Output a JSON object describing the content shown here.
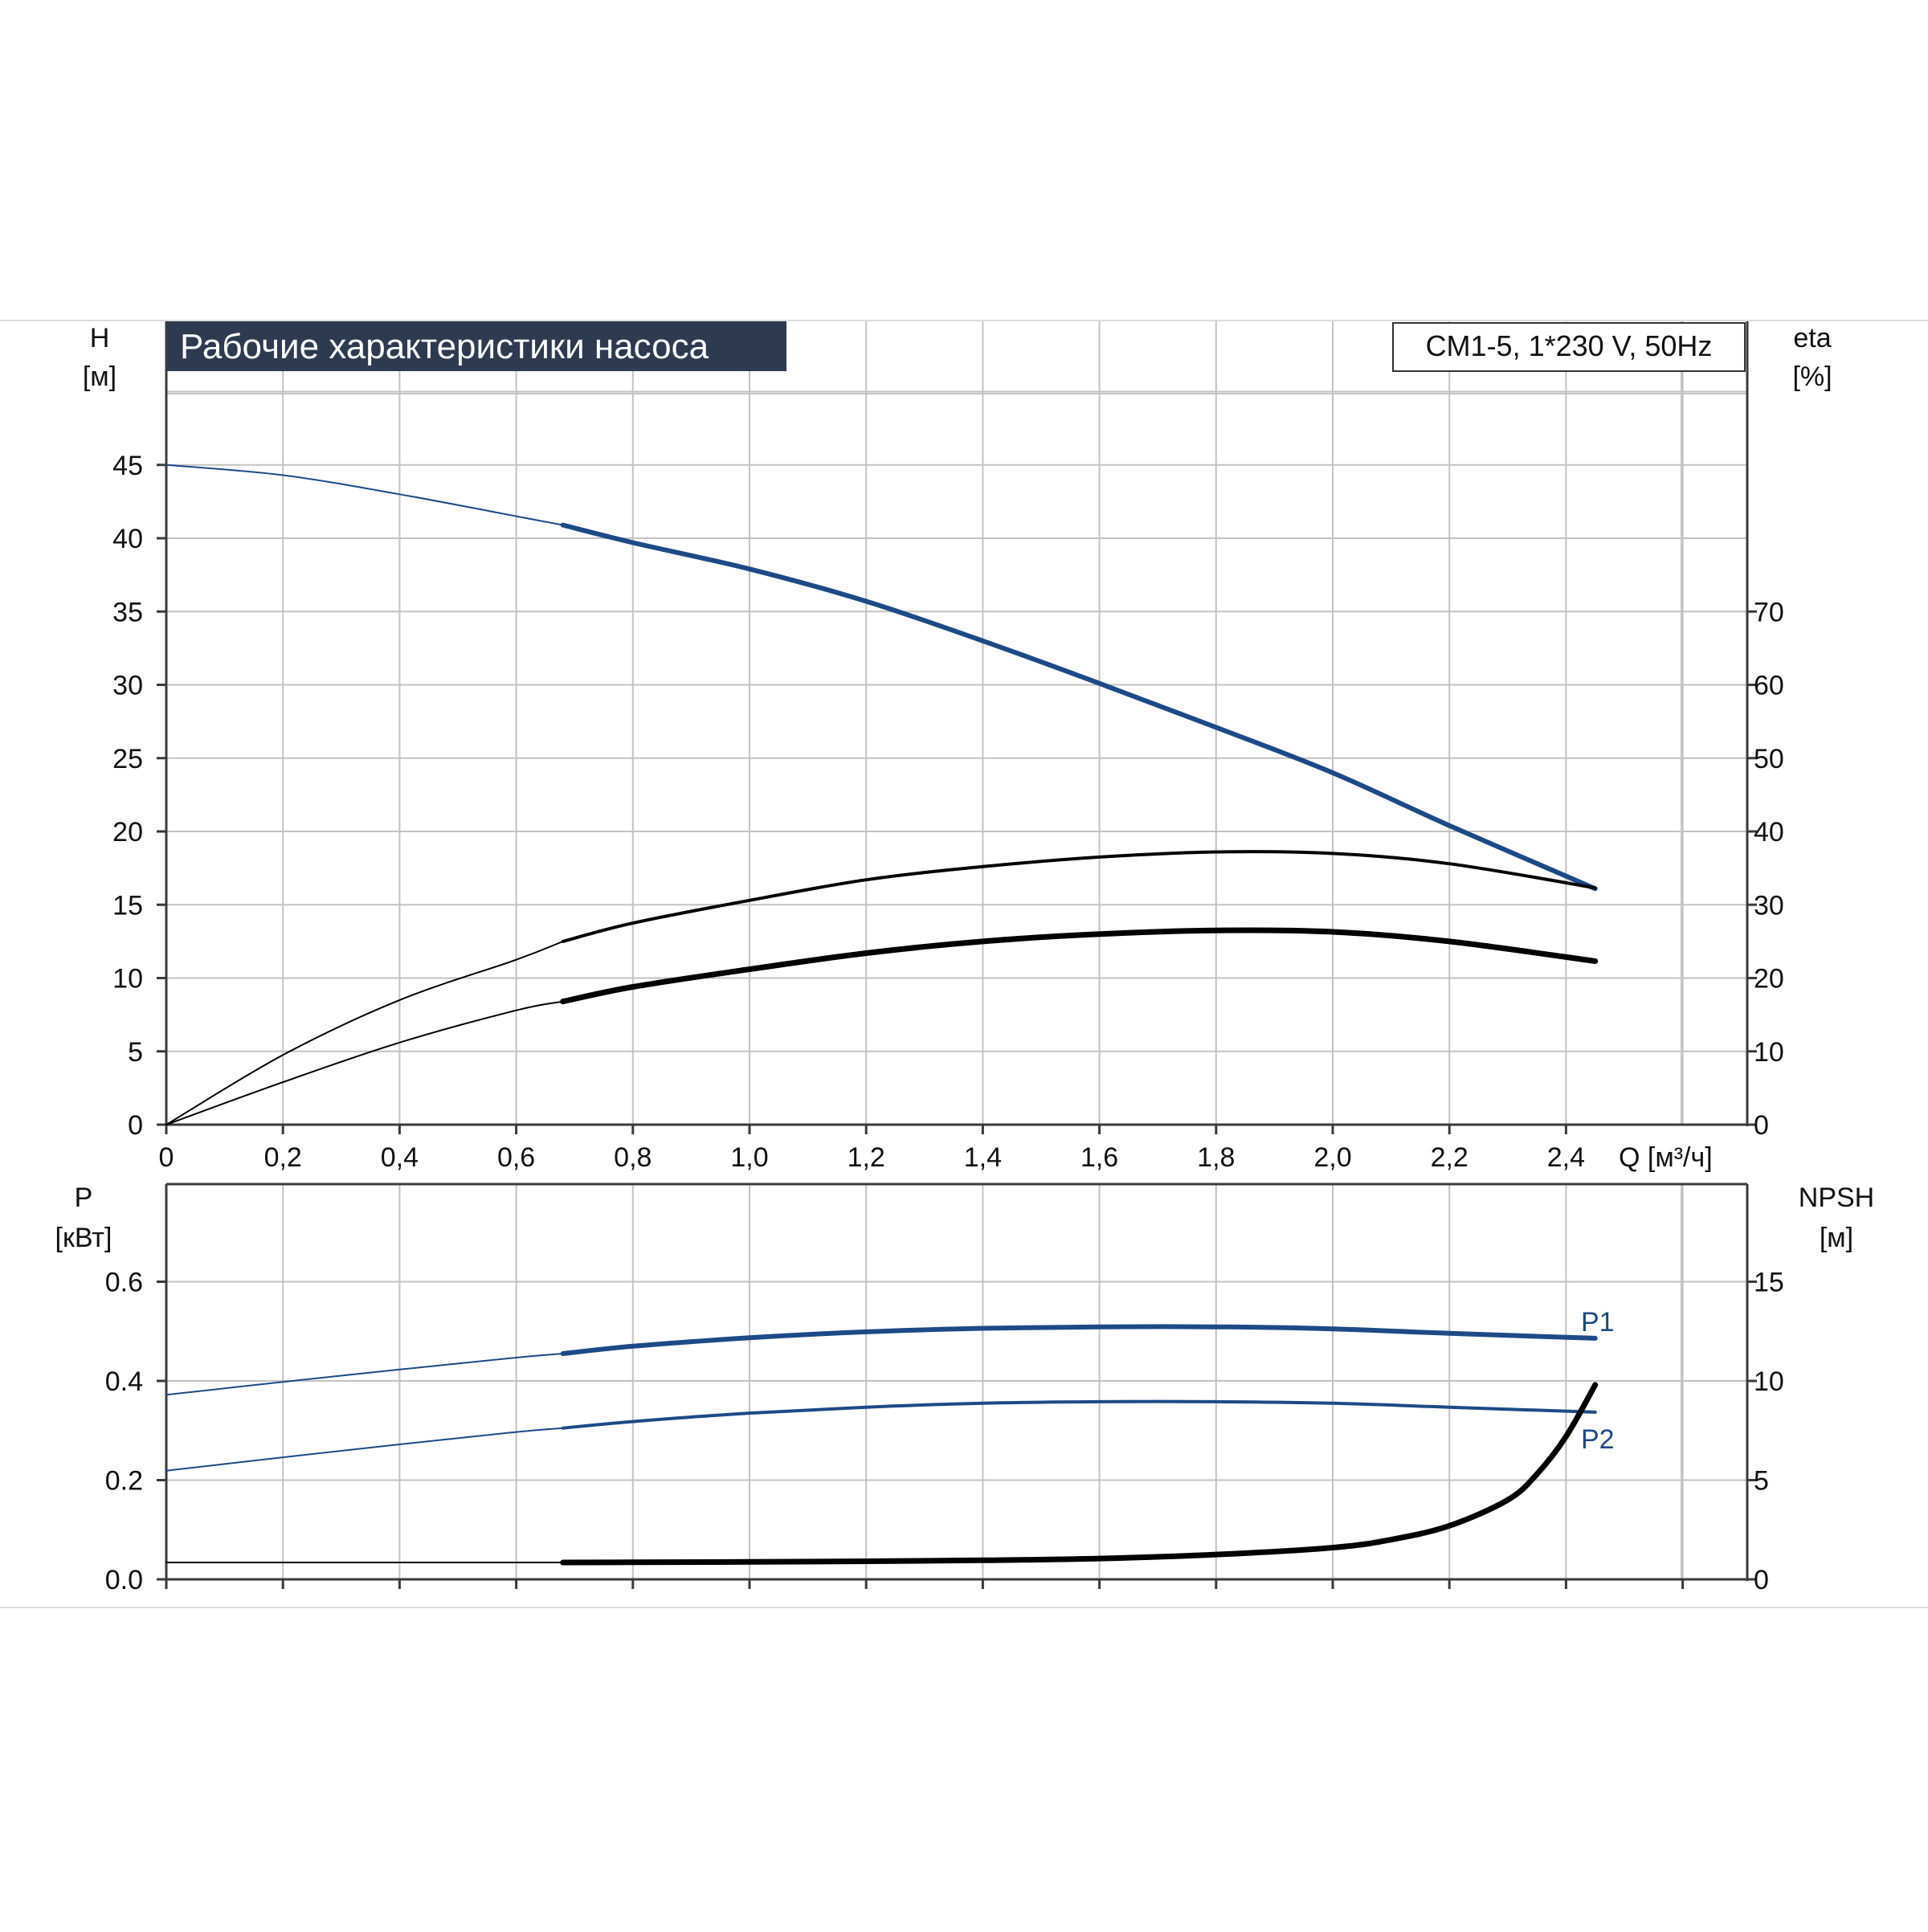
{
  "title": "Рабочие характеристики насоса",
  "model_label": "CM1-5, 1*230 V, 50Hz",
  "colors": {
    "grid": "#c2c2c2",
    "axis": "#3a3a3a",
    "blue": "#1d4a86",
    "black": "#000000",
    "title_bg": "#2e3a4f",
    "title_fg": "#ffffff"
  },
  "chart_data": [
    {
      "id": "performance",
      "type": "line",
      "xlabel": "Q [м³/ч]",
      "xlim": [
        0,
        2.7
      ],
      "x_ticks": [
        "0",
        "0,2",
        "0,4",
        "0,6",
        "0,8",
        "1,0",
        "1,2",
        "1,4",
        "1,6",
        "1,8",
        "2,0",
        "2,2",
        "2,4"
      ],
      "ylabel_left": "H",
      "ylabel_left_unit": "[м]",
      "ylim_left": [
        0,
        50
      ],
      "y_ticks_left": [
        "0",
        "5",
        "10",
        "15",
        "20",
        "25",
        "30",
        "35",
        "40",
        "45"
      ],
      "ylabel_right": "eta",
      "ylabel_right_unit": "[%]",
      "ylim_right": [
        0,
        100
      ],
      "y_ticks_right": [
        "0",
        "10",
        "20",
        "30",
        "40",
        "50",
        "60",
        "70"
      ],
      "grid": true,
      "series": [
        {
          "key": "head",
          "axis": "left",
          "color": "blue",
          "x": [
            0,
            0.2,
            0.4,
            0.6,
            0.68,
            0.8,
            1.0,
            1.2,
            1.4,
            1.6,
            1.8,
            2.0,
            2.2,
            2.45
          ],
          "y": [
            45.0,
            44.3,
            43.0,
            41.5,
            40.9,
            39.7,
            37.9,
            35.7,
            33.0,
            30.1,
            27.1,
            24.0,
            20.4,
            16.1
          ]
        },
        {
          "key": "eta_overall",
          "axis": "right",
          "color": "black",
          "x": [
            0,
            0.2,
            0.4,
            0.6,
            0.68,
            0.8,
            1.0,
            1.2,
            1.4,
            1.6,
            1.8,
            2.0,
            2.2,
            2.45
          ],
          "y": [
            0,
            9.5,
            17.0,
            22.5,
            25.0,
            27.5,
            30.6,
            33.4,
            35.2,
            36.5,
            37.2,
            37.0,
            35.6,
            32.3
          ]
        },
        {
          "key": "eta_hydraulic",
          "axis": "right",
          "color": "black",
          "x": [
            0,
            0.2,
            0.4,
            0.6,
            0.68,
            0.8,
            1.0,
            1.2,
            1.4,
            1.6,
            1.8,
            2.0,
            2.2,
            2.45
          ],
          "y": [
            0,
            5.8,
            11.2,
            15.6,
            16.8,
            18.8,
            21.2,
            23.4,
            25.0,
            26.0,
            26.5,
            26.3,
            25.0,
            22.3
          ]
        }
      ]
    },
    {
      "id": "power",
      "type": "line",
      "xlim": [
        0,
        2.7
      ],
      "ylabel_left": "P",
      "ylabel_left_unit": "[кВт]",
      "ylim_left": [
        0,
        0.8
      ],
      "y_ticks_left": [
        "0.0",
        "0.2",
        "0.4",
        "0.6"
      ],
      "ylabel_right": "NPSH",
      "ylabel_right_unit": "[м]",
      "ylim_right": [
        0,
        20
      ],
      "y_ticks_right": [
        "0",
        "5",
        "10",
        "15"
      ],
      "grid": true,
      "series": [
        {
          "name": "P1",
          "key": "P1",
          "axis": "left",
          "color": "blue",
          "x": [
            0,
            0.2,
            0.4,
            0.6,
            0.68,
            0.8,
            1.0,
            1.2,
            1.4,
            1.6,
            1.8,
            2.0,
            2.2,
            2.45
          ],
          "y": [
            0.372,
            0.398,
            0.423,
            0.447,
            0.455,
            0.47,
            0.487,
            0.499,
            0.506,
            0.509,
            0.509,
            0.505,
            0.496,
            0.486
          ]
        },
        {
          "name": "P2",
          "key": "P2",
          "axis": "left",
          "color": "blue",
          "x": [
            0,
            0.2,
            0.4,
            0.6,
            0.68,
            0.8,
            1.0,
            1.2,
            1.4,
            1.6,
            1.8,
            2.0,
            2.2,
            2.45
          ],
          "y": [
            0.219,
            0.246,
            0.272,
            0.297,
            0.305,
            0.318,
            0.335,
            0.347,
            0.355,
            0.358,
            0.358,
            0.355,
            0.347,
            0.337
          ]
        },
        {
          "key": "npsh",
          "axis": "right",
          "color": "black",
          "x": [
            0,
            0.68,
            0.8,
            1.0,
            1.2,
            1.4,
            1.6,
            1.8,
            2.0,
            2.1,
            2.2,
            2.3,
            2.35,
            2.4,
            2.45
          ],
          "y": [
            0.85,
            0.85,
            0.86,
            0.88,
            0.91,
            0.96,
            1.05,
            1.25,
            1.6,
            2.0,
            2.7,
            4.0,
            5.3,
            7.2,
            9.8
          ]
        }
      ]
    }
  ]
}
